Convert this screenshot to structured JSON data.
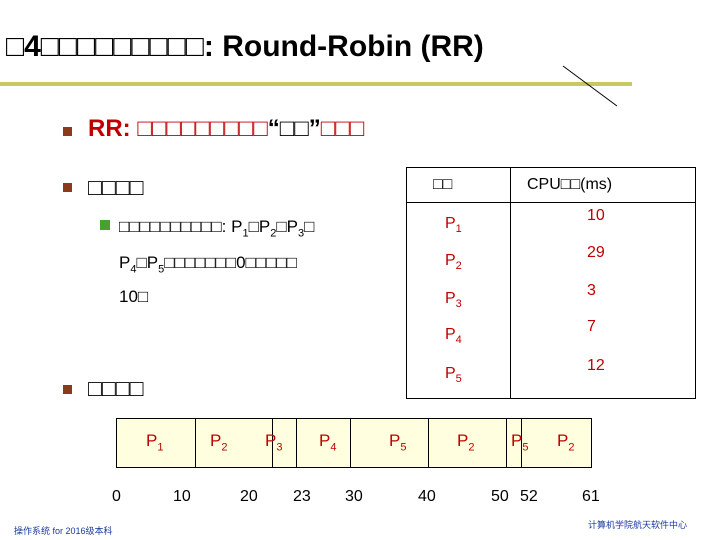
{
  "slide": {
    "title": "□4□□□□□□□□□: Round-Robin (RR)",
    "definition": {
      "prefix": "RR: □□□□□□□□□",
      "quoted": "“□□”",
      "suffix": "□□□"
    },
    "section_example": "□□□□",
    "example_text": {
      "line1_prefix": "□□□□□□□□□□: P",
      "line1_after_p1": "□P",
      "line1_after_p2": "□P",
      "line1_tail": "□",
      "line2_prefix": "P",
      "line2_mid": "□P",
      "line2_tail": "□□□□□□□0□□□□□",
      "line3": "10□",
      "sub1": "1",
      "sub2": "2",
      "sub3": "3",
      "sub4": "4",
      "sub5": "5"
    },
    "section_schedule": "□□□□",
    "table": {
      "col_process": "□□",
      "col_cpu": "CPU□□(ms)",
      "rows": [
        {
          "p": "P",
          "sub": "1",
          "t": "10"
        },
        {
          "p": "P",
          "sub": "2",
          "t": "29"
        },
        {
          "p": "P",
          "sub": "3",
          "t": "3"
        },
        {
          "p": "P",
          "sub": "4",
          "t": "7"
        },
        {
          "p": "P",
          "sub": "5",
          "t": "12"
        }
      ]
    },
    "gantt": {
      "segments": [
        {
          "p": "P",
          "sub": "1"
        },
        {
          "p": "P",
          "sub": "2"
        },
        {
          "p": "P",
          "sub": "3"
        },
        {
          "p": "P",
          "sub": "4"
        },
        {
          "p": "P",
          "sub": "5"
        },
        {
          "p": "P",
          "sub": "2"
        },
        {
          "p": "P",
          "sub": "5"
        },
        {
          "p": "P",
          "sub": "2"
        }
      ],
      "ticks": [
        "0",
        "10",
        "20",
        "23",
        "30",
        "40",
        "50",
        "52",
        "61"
      ]
    },
    "footer_left": "操作系统 for 2016级本科",
    "footer_right": "计算机学院航天软件中心"
  }
}
